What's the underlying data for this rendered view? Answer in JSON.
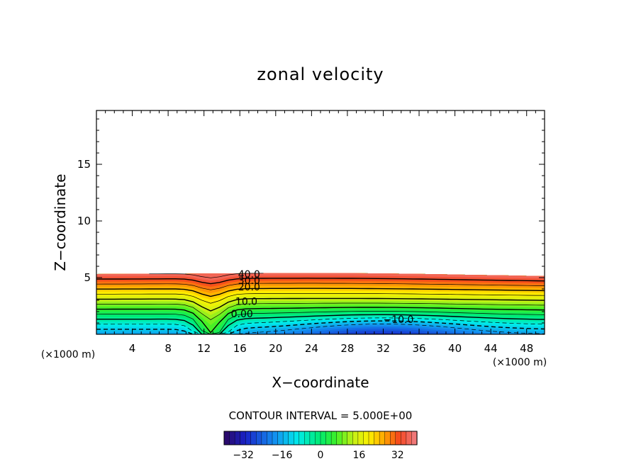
{
  "chart_data": {
    "type": "contour",
    "title": "zonal velocity",
    "xlabel": "X−coordinate",
    "ylabel": "Z−coordinate",
    "x_unit_left": "(×1000 m)",
    "x_unit_right": "(×1000 m)",
    "xlim": [
      0,
      50
    ],
    "ylim": [
      0,
      19.75
    ],
    "x_ticks": [
      4,
      8,
      12,
      16,
      20,
      24,
      28,
      32,
      36,
      40,
      44,
      48
    ],
    "x_tick_labels": [
      "4",
      "8",
      "12",
      "16",
      "20",
      "24",
      "28",
      "32",
      "36",
      "40",
      "44",
      "48"
    ],
    "y_ticks": [
      5,
      10,
      15
    ],
    "y_tick_labels": [
      "5",
      "10",
      "15"
    ],
    "contour_interval_text": "CONTOUR INTERVAL = 5.000E+00",
    "contour_labels": [
      {
        "text": "40.0",
        "x": 15.8,
        "z": 5.3
      },
      {
        "text": "30.0",
        "x": 15.8,
        "z": 4.75
      },
      {
        "text": "20.0",
        "x": 15.8,
        "z": 4.2
      },
      {
        "text": "10.0",
        "x": 15.5,
        "z": 2.9
      },
      {
        "text": "0.00",
        "x": 15.0,
        "z": 1.8
      },
      {
        "text": "−10.0",
        "x": 32.0,
        "z": 1.3
      }
    ],
    "colorbar": {
      "min": -40,
      "max": 40,
      "tick_values": [
        -32,
        -16,
        0,
        16,
        32
      ],
      "tick_labels": [
        "−32",
        "−16",
        "0",
        "16",
        "32"
      ]
    }
  }
}
